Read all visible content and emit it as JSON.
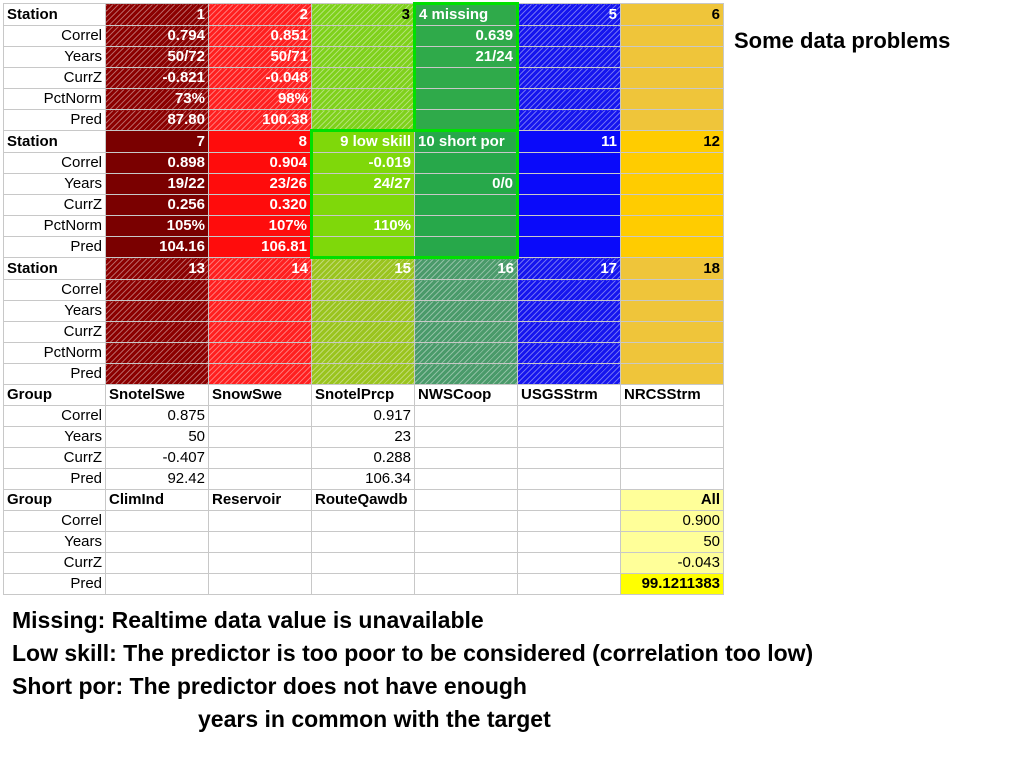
{
  "side_title": "Some data problems",
  "notes": [
    "Missing: Realtime data value is unavailable",
    "Low skill: The predictor is too poor to be considered (correlation too low)",
    "Short por: The predictor does not have enough",
    "years in common with the target"
  ],
  "sheet": {
    "blocks": [
      {
        "header": "Station",
        "columns": [
          "1",
          "2",
          "3",
          "4 missing",
          "5",
          "6"
        ],
        "rows": [
          {
            "label": "Correl",
            "values": [
              "0.794",
              "0.851",
              "",
              "0.639",
              "",
              ""
            ]
          },
          {
            "label": "Years",
            "values": [
              "50/72",
              "50/71",
              "",
              "21/24",
              "",
              ""
            ]
          },
          {
            "label": "CurrZ",
            "values": [
              "-0.821",
              "-0.048",
              "",
              "",
              "",
              ""
            ]
          },
          {
            "label": "PctNorm",
            "values": [
              "73%",
              "98%",
              "",
              "",
              "",
              ""
            ]
          },
          {
            "label": "Pred",
            "values": [
              "87.80",
              "100.38",
              "",
              "",
              "",
              ""
            ]
          }
        ]
      },
      {
        "header": "Station",
        "columns": [
          "7",
          "8",
          "9 low skill",
          "10 short por",
          "11",
          "12"
        ],
        "rows": [
          {
            "label": "Correl",
            "values": [
              "0.898",
              "0.904",
              "-0.019",
              "",
              "",
              ""
            ]
          },
          {
            "label": "Years",
            "values": [
              "19/22",
              "23/26",
              "24/27",
              "0/0",
              "",
              ""
            ]
          },
          {
            "label": "CurrZ",
            "values": [
              "0.256",
              "0.320",
              "",
              "",
              "",
              ""
            ]
          },
          {
            "label": "PctNorm",
            "values": [
              "105%",
              "107%",
              "110%",
              "",
              "",
              ""
            ]
          },
          {
            "label": "Pred",
            "values": [
              "104.16",
              "106.81",
              "",
              "",
              "",
              ""
            ]
          }
        ]
      },
      {
        "header": "Station",
        "columns": [
          "13",
          "14",
          "15",
          "16",
          "17",
          "18"
        ],
        "rows": [
          {
            "label": "Correl",
            "values": [
              "",
              "",
              "",
              "",
              "",
              ""
            ]
          },
          {
            "label": "Years",
            "values": [
              "",
              "",
              "",
              "",
              "",
              ""
            ]
          },
          {
            "label": "CurrZ",
            "values": [
              "",
              "",
              "",
              "",
              "",
              ""
            ]
          },
          {
            "label": "PctNorm",
            "values": [
              "",
              "",
              "",
              "",
              "",
              ""
            ]
          },
          {
            "label": "Pred",
            "values": [
              "",
              "",
              "",
              "",
              "",
              ""
            ]
          }
        ]
      },
      {
        "header": "Group",
        "columns": [
          "SnotelSwe",
          "SnowSwe",
          "SnotelPrcp",
          "NWSCoop",
          "USGSStrm",
          "NRCSStrm"
        ],
        "rows": [
          {
            "label": "Correl",
            "values": [
              "0.875",
              "",
              "0.917",
              "",
              "",
              ""
            ]
          },
          {
            "label": "Years",
            "values": [
              "50",
              "",
              "23",
              "",
              "",
              ""
            ]
          },
          {
            "label": "CurrZ",
            "values": [
              "-0.407",
              "",
              "0.288",
              "",
              "",
              ""
            ]
          },
          {
            "label": "Pred",
            "values": [
              "92.42",
              "",
              "106.34",
              "",
              "",
              ""
            ]
          }
        ]
      },
      {
        "header": "Group",
        "columns": [
          "ClimInd",
          "Reservoir",
          "RouteQawdb",
          "",
          "",
          "All"
        ],
        "rows": [
          {
            "label": "Correl",
            "values": [
              "",
              "",
              "",
              "",
              "",
              "0.900"
            ]
          },
          {
            "label": "Years",
            "values": [
              "",
              "",
              "",
              "",
              "",
              "50"
            ]
          },
          {
            "label": "CurrZ",
            "values": [
              "",
              "",
              "",
              "",
              "",
              "-0.043"
            ]
          },
          {
            "label": "Pred",
            "values": [
              "",
              "",
              "",
              "",
              "",
              "99.1211383"
            ]
          }
        ]
      }
    ]
  }
}
